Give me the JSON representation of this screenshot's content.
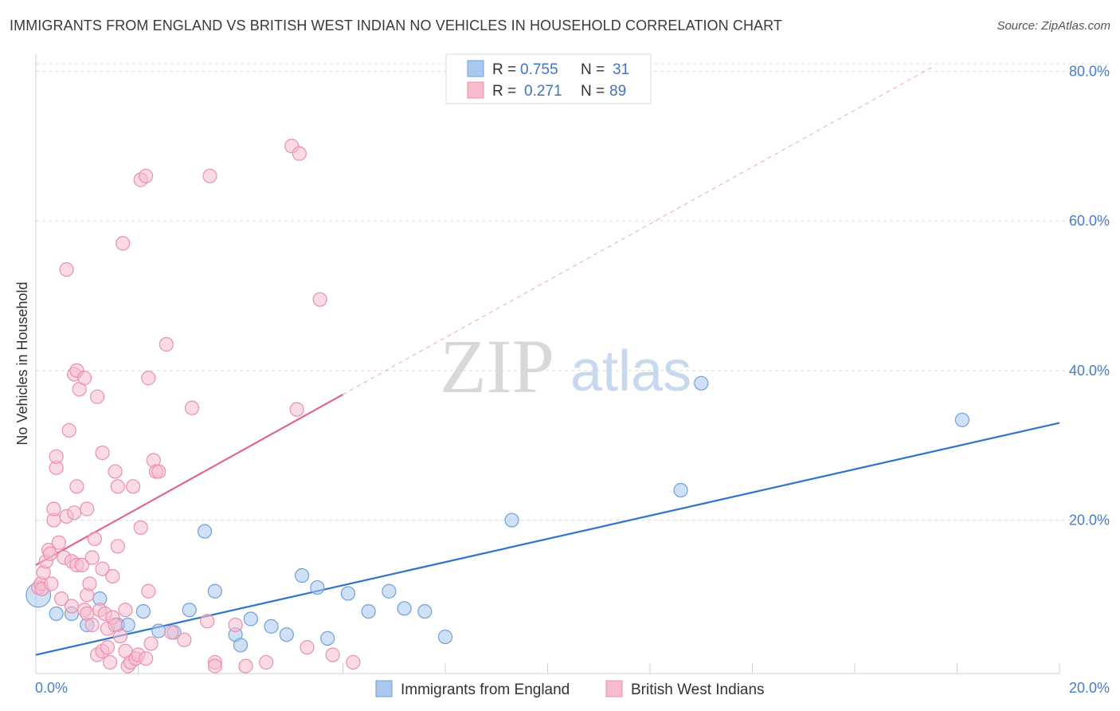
{
  "title": "IMMIGRANTS FROM ENGLAND VS BRITISH WEST INDIAN NO VEHICLES IN HOUSEHOLD CORRELATION CHART",
  "source": "Source: ZipAtlas.com",
  "watermark": {
    "zip": "ZIP",
    "atlas": "atlas"
  },
  "legend": {
    "r_label": "R =",
    "n_label": "N =",
    "rows": [
      {
        "r": "0.755",
        "n": "31"
      },
      {
        "r": "0.271",
        "n": "89"
      }
    ]
  },
  "colors": {
    "blue_fill": "#aac8ee",
    "blue_stroke": "#6f9fdc",
    "blue_line": "#2f74cc",
    "pink_fill": "#f6bccd",
    "pink_stroke": "#ec8fad",
    "pink_line": "#e3668f",
    "grid": "#dcdcdc",
    "tick_text": "#4a7cc8"
  },
  "chart_data": {
    "type": "scatter",
    "title": "IMMIGRANTS FROM ENGLAND VS BRITISH WEST INDIAN NO VEHICLES IN HOUSEHOLD CORRELATION CHART",
    "xlabel": "",
    "ylabel": "No Vehicles in Household",
    "xlim": [
      0,
      20
    ],
    "ylim": [
      -0.5,
      81
    ],
    "x_ticks": [
      {
        "value": 0,
        "label": "0.0%"
      },
      {
        "value": 20,
        "label": "20.0%"
      }
    ],
    "y_ticks": [
      {
        "value": 20,
        "label": "20.0%"
      },
      {
        "value": 40,
        "label": "40.0%"
      },
      {
        "value": 60,
        "label": "60.0%"
      },
      {
        "value": 80,
        "label": "80.0%"
      }
    ],
    "series": [
      {
        "name": "Immigrants from England",
        "color": "blue",
        "trend": {
          "x0": 0,
          "y0": 2.0,
          "x1": 20,
          "y1": 33.0,
          "solid_to": 20
        },
        "points": [
          [
            0.05,
            10.0,
            1.8
          ],
          [
            0.4,
            7.5,
            1
          ],
          [
            0.7,
            7.5,
            1
          ],
          [
            1.0,
            6.0,
            1
          ],
          [
            1.25,
            9.5,
            1
          ],
          [
            1.6,
            6.0,
            1
          ],
          [
            1.8,
            6.0,
            1
          ],
          [
            2.1,
            7.8,
            1
          ],
          [
            2.4,
            5.2,
            1
          ],
          [
            2.7,
            5.0,
            1
          ],
          [
            3.0,
            8.0,
            1
          ],
          [
            3.3,
            18.5,
            1
          ],
          [
            3.5,
            10.5,
            1
          ],
          [
            3.9,
            4.7,
            1
          ],
          [
            4.0,
            3.3,
            1
          ],
          [
            4.2,
            6.8,
            1
          ],
          [
            4.6,
            5.8,
            1
          ],
          [
            4.9,
            4.7,
            1
          ],
          [
            5.2,
            12.6,
            1
          ],
          [
            5.5,
            11.0,
            1
          ],
          [
            5.7,
            4.2,
            1
          ],
          [
            6.1,
            10.2,
            1
          ],
          [
            6.5,
            7.8,
            1
          ],
          [
            6.9,
            10.5,
            1
          ],
          [
            7.2,
            8.2,
            1
          ],
          [
            7.6,
            7.8,
            1
          ],
          [
            8.0,
            4.4,
            1
          ],
          [
            9.3,
            20.0,
            1
          ],
          [
            12.6,
            24.0,
            1
          ],
          [
            13.0,
            38.3,
            1
          ],
          [
            18.1,
            33.4,
            1
          ]
        ]
      },
      {
        "name": "British West Indians",
        "color": "pink",
        "trend": {
          "x0": 0,
          "y0": 14.0,
          "x1": 17.5,
          "y1": 80.5,
          "solid_to": 6.0
        },
        "points": [
          [
            0.05,
            11.0,
            1
          ],
          [
            0.1,
            11.5,
            1
          ],
          [
            0.12,
            10.8,
            1
          ],
          [
            0.15,
            13.0,
            1
          ],
          [
            0.2,
            14.5,
            1
          ],
          [
            0.25,
            16.0,
            1
          ],
          [
            0.28,
            15.5,
            1
          ],
          [
            0.3,
            11.5,
            1
          ],
          [
            0.35,
            20.0,
            1
          ],
          [
            0.35,
            21.5,
            1
          ],
          [
            0.4,
            27.0,
            1
          ],
          [
            0.4,
            28.5,
            1
          ],
          [
            0.45,
            17.0,
            1
          ],
          [
            0.5,
            9.5,
            1
          ],
          [
            0.55,
            15.0,
            1
          ],
          [
            0.6,
            20.5,
            1
          ],
          [
            0.6,
            53.5,
            1
          ],
          [
            0.65,
            32.0,
            1
          ],
          [
            0.7,
            8.5,
            1
          ],
          [
            0.7,
            14.5,
            1
          ],
          [
            0.75,
            21.0,
            1
          ],
          [
            0.75,
            39.5,
            1
          ],
          [
            0.8,
            40.0,
            1
          ],
          [
            0.8,
            14.0,
            1
          ],
          [
            0.8,
            24.5,
            1
          ],
          [
            0.85,
            37.5,
            1
          ],
          [
            0.9,
            14.0,
            1
          ],
          [
            0.95,
            8.0,
            1
          ],
          [
            0.95,
            39.0,
            1
          ],
          [
            1.0,
            7.5,
            1
          ],
          [
            1.0,
            10.0,
            1
          ],
          [
            1.0,
            21.5,
            1
          ],
          [
            1.05,
            11.5,
            1
          ],
          [
            1.1,
            15.0,
            1
          ],
          [
            1.1,
            6.0,
            1
          ],
          [
            1.15,
            17.5,
            1
          ],
          [
            1.2,
            2.0,
            1
          ],
          [
            1.2,
            36.5,
            1
          ],
          [
            1.25,
            8.0,
            1
          ],
          [
            1.3,
            13.5,
            1
          ],
          [
            1.3,
            2.5,
            1
          ],
          [
            1.3,
            29.0,
            1
          ],
          [
            1.35,
            7.5,
            1
          ],
          [
            1.4,
            3.0,
            1
          ],
          [
            1.4,
            5.5,
            1
          ],
          [
            1.45,
            1.0,
            1
          ],
          [
            1.5,
            12.5,
            1
          ],
          [
            1.5,
            7.0,
            1
          ],
          [
            1.55,
            26.5,
            1
          ],
          [
            1.55,
            6.0,
            1
          ],
          [
            1.6,
            16.5,
            1
          ],
          [
            1.6,
            24.5,
            1
          ],
          [
            1.65,
            4.5,
            1
          ],
          [
            1.7,
            57.0,
            1
          ],
          [
            1.75,
            8.0,
            1
          ],
          [
            1.75,
            2.5,
            1
          ],
          [
            1.8,
            0.5,
            1
          ],
          [
            1.85,
            1.0,
            1
          ],
          [
            1.9,
            24.5,
            1
          ],
          [
            1.95,
            1.5,
            1
          ],
          [
            2.0,
            2.0,
            1
          ],
          [
            2.05,
            65.5,
            1
          ],
          [
            2.05,
            19.0,
            1
          ],
          [
            2.15,
            66.0,
            1
          ],
          [
            2.15,
            1.5,
            1
          ],
          [
            2.2,
            10.5,
            1
          ],
          [
            2.2,
            39.0,
            1
          ],
          [
            2.25,
            3.5,
            1
          ],
          [
            2.3,
            28.0,
            1
          ],
          [
            2.35,
            26.5,
            1
          ],
          [
            2.4,
            26.5,
            1
          ],
          [
            2.55,
            43.5,
            1
          ],
          [
            2.65,
            5.0,
            1
          ],
          [
            2.9,
            4.0,
            1
          ],
          [
            3.05,
            35.0,
            1
          ],
          [
            3.35,
            6.5,
            1
          ],
          [
            3.4,
            66.0,
            1
          ],
          [
            3.5,
            1.0,
            1
          ],
          [
            3.5,
            0.5,
            1
          ],
          [
            3.9,
            6.0,
            1
          ],
          [
            4.1,
            0.5,
            1
          ],
          [
            4.5,
            1.0,
            1
          ],
          [
            5.0,
            70.0,
            1
          ],
          [
            5.1,
            34.8,
            1
          ],
          [
            5.15,
            69.0,
            1
          ],
          [
            5.3,
            3.0,
            1
          ],
          [
            5.55,
            49.5,
            1
          ],
          [
            5.8,
            2.0,
            1
          ],
          [
            6.2,
            1.0,
            1
          ]
        ]
      }
    ],
    "legend_entries": [
      "Immigrants from England",
      "British West Indians"
    ]
  }
}
